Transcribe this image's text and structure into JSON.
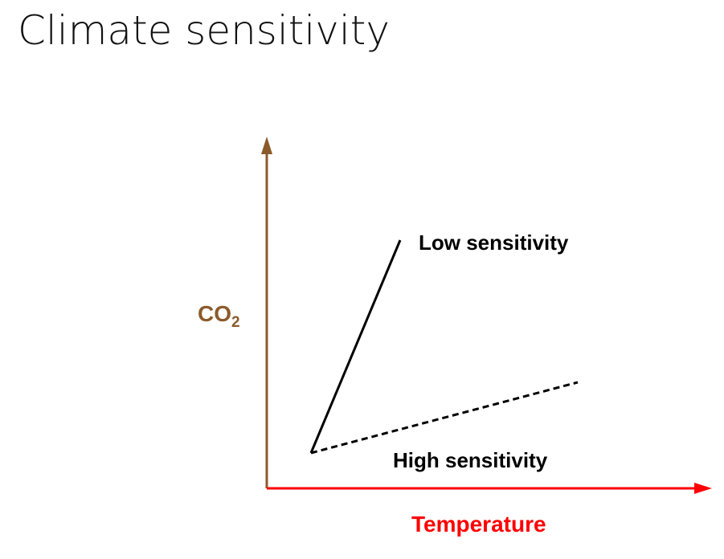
{
  "title": "Climate sensitivity",
  "diagram": {
    "y_axis": {
      "label": "CO",
      "subscript": "2",
      "color": "#8b5a2b"
    },
    "x_axis": {
      "label": "Temperature",
      "color": "#ff0000"
    },
    "lines": [
      {
        "label": "Low sensitivity",
        "style": "solid",
        "color": "#000000"
      },
      {
        "label": "High sensitivity",
        "style": "dashed",
        "color": "#000000"
      }
    ]
  }
}
